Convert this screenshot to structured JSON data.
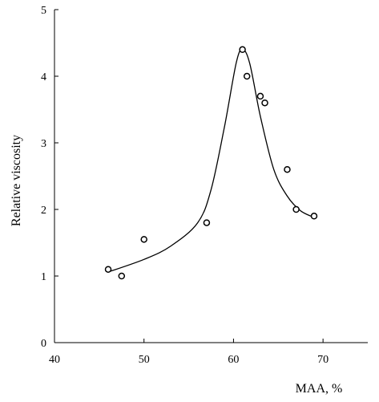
{
  "chart_data": {
    "type": "scatter",
    "xlabel": "MAA, %",
    "ylabel": "Relative viscosity",
    "xlim": [
      40,
      75
    ],
    "ylim": [
      0,
      5
    ],
    "x_ticks": [
      "40",
      "50",
      "60",
      "70"
    ],
    "y_ticks": [
      "0",
      "1",
      "2",
      "3",
      "4",
      "5"
    ],
    "grid": false,
    "series": [
      {
        "marker": "open-circle",
        "points": [
          {
            "x": 46.0,
            "y": 1.1
          },
          {
            "x": 47.5,
            "y": 1.0
          },
          {
            "x": 50.0,
            "y": 1.55
          },
          {
            "x": 57.0,
            "y": 1.8
          },
          {
            "x": 61.0,
            "y": 4.4
          },
          {
            "x": 61.5,
            "y": 4.0
          },
          {
            "x": 63.0,
            "y": 3.7
          },
          {
            "x": 63.5,
            "y": 3.6
          },
          {
            "x": 66.0,
            "y": 2.6
          },
          {
            "x": 67.0,
            "y": 2.0
          },
          {
            "x": 69.0,
            "y": 1.9
          }
        ]
      },
      {
        "style": "smooth-line",
        "points": [
          {
            "x": 46.0,
            "y": 1.06
          },
          {
            "x": 50.0,
            "y": 1.25
          },
          {
            "x": 53.0,
            "y": 1.45
          },
          {
            "x": 56.0,
            "y": 1.8
          },
          {
            "x": 57.5,
            "y": 2.3
          },
          {
            "x": 59.0,
            "y": 3.25
          },
          {
            "x": 60.3,
            "y": 4.2
          },
          {
            "x": 61.0,
            "y": 4.4
          },
          {
            "x": 61.8,
            "y": 4.2
          },
          {
            "x": 63.0,
            "y": 3.4
          },
          {
            "x": 64.5,
            "y": 2.6
          },
          {
            "x": 66.0,
            "y": 2.2
          },
          {
            "x": 67.5,
            "y": 1.98
          },
          {
            "x": 69.0,
            "y": 1.88
          }
        ]
      }
    ]
  }
}
